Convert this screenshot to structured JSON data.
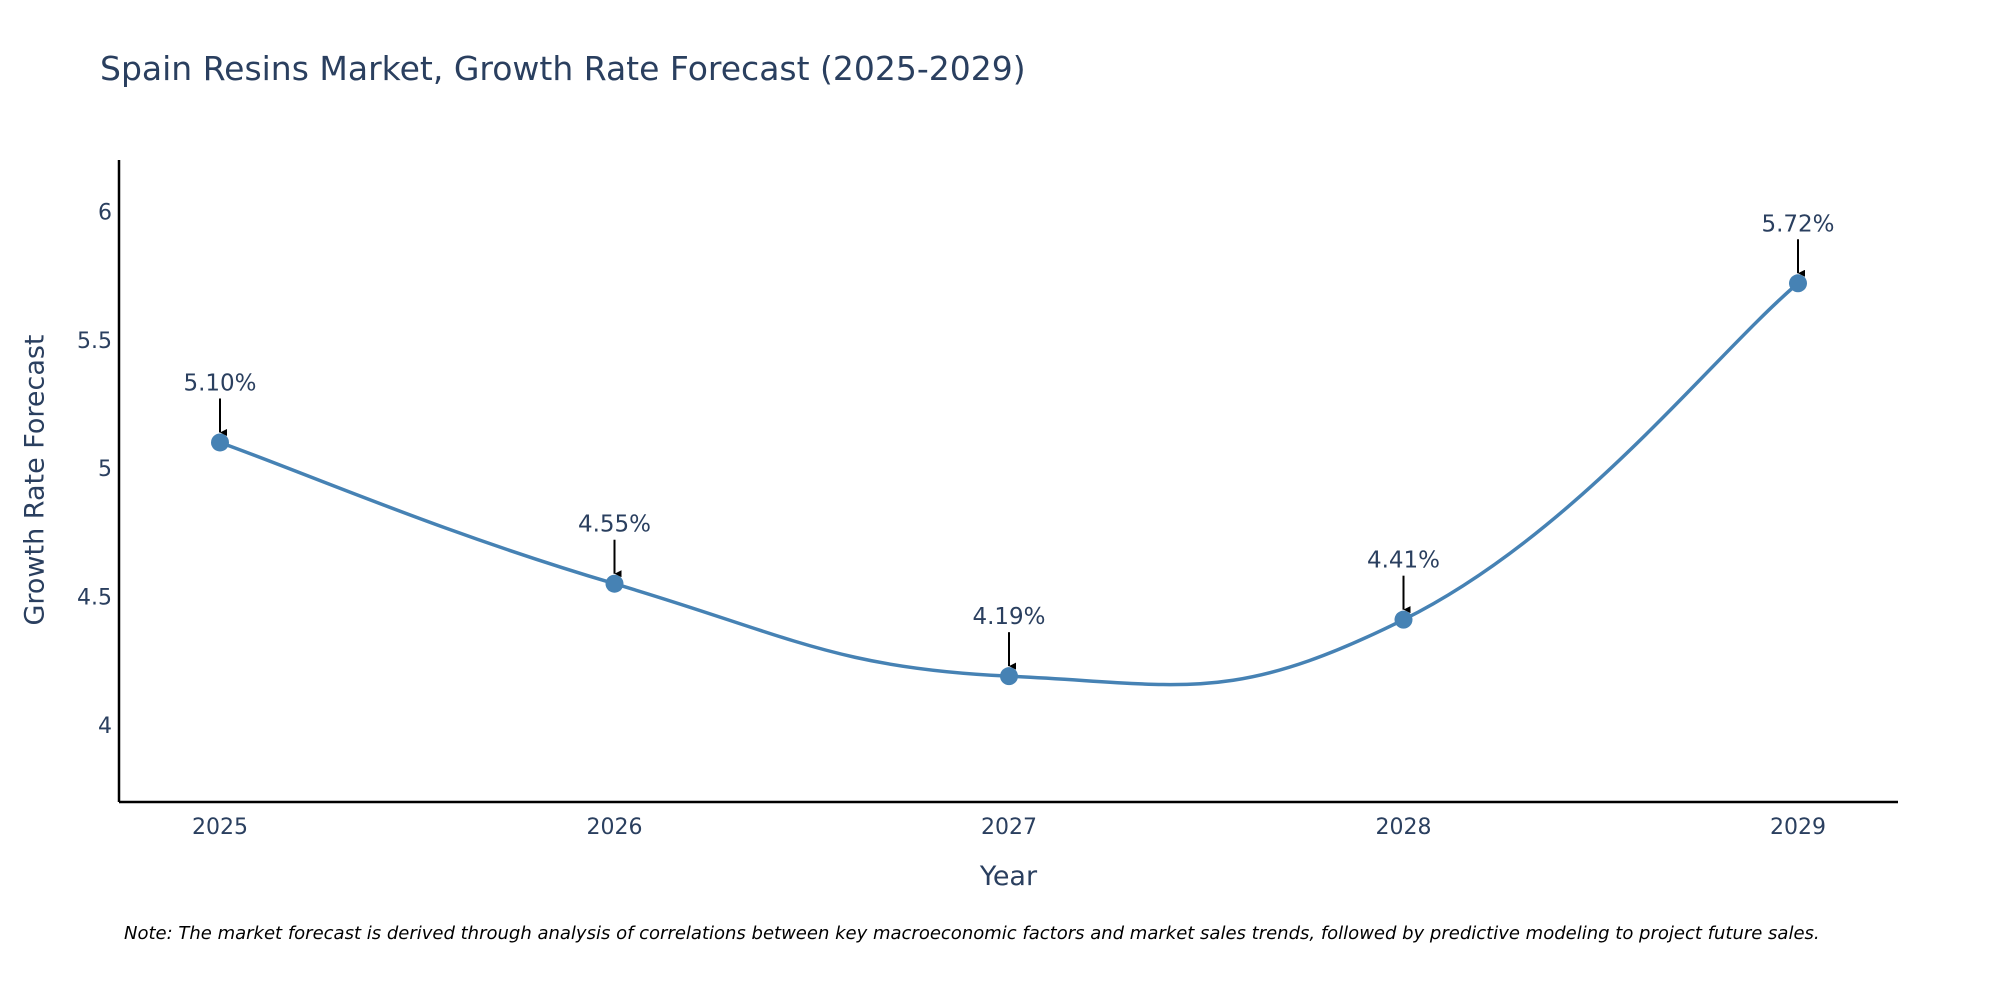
{
  "chart_data": {
    "type": "line",
    "title": "Spain Resins Market, Growth Rate Forecast (2025-2029)",
    "xlabel": "Year",
    "ylabel": "Growth Rate Forecast",
    "categories": [
      "2025",
      "2026",
      "2027",
      "2028",
      "2029"
    ],
    "values": [
      5.1,
      4.55,
      4.19,
      4.41,
      5.72
    ],
    "data_labels": [
      "5.10%",
      "4.55%",
      "4.19%",
      "4.41%",
      "5.72%"
    ],
    "ylim": [
      3.7,
      6.2
    ],
    "yticks": [
      4,
      4.5,
      5,
      5.5,
      6
    ],
    "ytick_labels": [
      "4",
      "4.5",
      "5",
      "5.5",
      "6"
    ],
    "grid": false,
    "line_shape": "spline",
    "line_color": "#4682b4",
    "marker_color": "#4682b4",
    "arrow_color": "#000000",
    "text_color": "#2a3f5f",
    "note": "Note: The market forecast is derived through analysis of correlations between key macroeconomic factors and market sales trends, followed by predictive modeling to project future sales."
  }
}
